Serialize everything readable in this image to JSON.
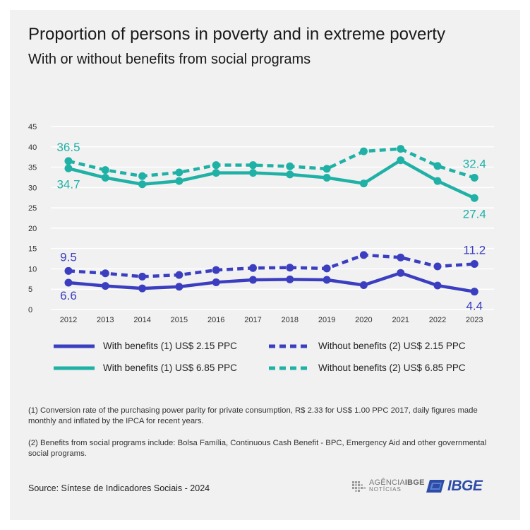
{
  "header": {
    "title": "Proportion of persons in poverty and in extreme poverty",
    "subtitle": "With or without benefits from social programs"
  },
  "colors": {
    "background": "#f1f1f1",
    "blue": "#3b3fbf",
    "teal": "#1fb1a6",
    "grid": "#ffffff"
  },
  "chart_data": {
    "type": "line",
    "x": [
      "2012",
      "2013",
      "2014",
      "2015",
      "2016",
      "2017",
      "2018",
      "2019",
      "2020",
      "2021",
      "2022",
      "2023"
    ],
    "ylim": [
      0,
      45
    ],
    "yticks": [
      "0",
      "5",
      "10",
      "15",
      "20",
      "25",
      "30",
      "35",
      "40",
      "45"
    ],
    "grid": true,
    "legend_placement": "bottom",
    "series": [
      {
        "name": "With benefits  (1)  US$ 2.15 PPC",
        "color": "#3b3fbf",
        "dashed": false,
        "values": [
          6.6,
          5.8,
          5.2,
          5.6,
          6.7,
          7.3,
          7.4,
          7.3,
          6.0,
          9.0,
          5.9,
          4.4
        ],
        "labels": {
          "first": "6.6",
          "last": "4.4"
        }
      },
      {
        "name": "Without benefits (2) US$ 2.15 PPC",
        "color": "#3b3fbf",
        "dashed": true,
        "values": [
          9.5,
          8.9,
          8.1,
          8.5,
          9.7,
          10.2,
          10.3,
          10.1,
          13.4,
          12.8,
          10.6,
          11.2
        ],
        "labels": {
          "first": "9.5",
          "last": "11.2"
        }
      },
      {
        "name": "With benefits (1) US$ 6.85 PPC",
        "color": "#1fb1a6",
        "dashed": false,
        "values": [
          34.7,
          32.4,
          30.8,
          31.6,
          33.6,
          33.6,
          33.2,
          32.4,
          31.0,
          36.7,
          31.6,
          27.4
        ],
        "labels": {
          "first": "34.7",
          "last": "27.4"
        }
      },
      {
        "name": "Without benefits (2) US$ 6.85 PPC",
        "color": "#1fb1a6",
        "dashed": true,
        "values": [
          36.5,
          34.3,
          32.8,
          33.7,
          35.5,
          35.5,
          35.2,
          34.6,
          38.9,
          39.5,
          35.3,
          32.4
        ],
        "labels": {
          "first": "36.5",
          "last": "32.4"
        }
      }
    ]
  },
  "notes": {
    "note1": "(1) Conversion rate of the purchasing power parity for private consumption, R$ 2.33 for US$ 1.00 PPC 2017, daily figures made monthly and inflated by the IPCA for recent years.",
    "note2": "(2) Benefits from social programs include: Bolsa Família, Continuous Cash Benefit - BPC, Emergency Aid and other governmental social programs."
  },
  "source": "Source: Síntese de Indicadores Sociais - 2024",
  "logos": {
    "agencia_main": "AGÊNCIA",
    "agencia_brand": "IBGE",
    "agencia_sub": "NOTÍCIAS",
    "ibge": "IBGE"
  }
}
